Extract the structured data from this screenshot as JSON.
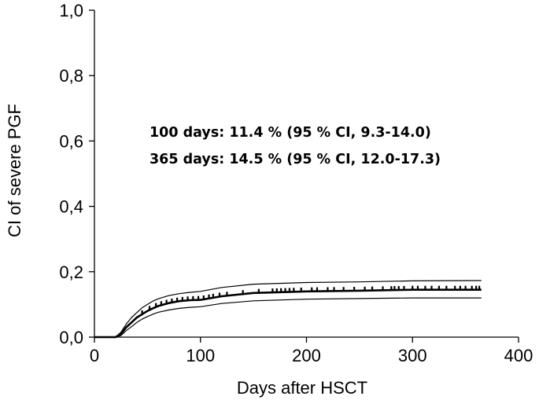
{
  "chart_data": {
    "type": "line",
    "title": "",
    "xlabel": "Days after HSCT",
    "ylabel": "CI of severe PGF",
    "xlim": [
      0,
      400
    ],
    "ylim": [
      0,
      1
    ],
    "x_ticks": [
      0,
      100,
      200,
      300,
      400
    ],
    "x_tick_labels": [
      "0",
      "100",
      "200",
      "300",
      "400"
    ],
    "y_ticks": [
      0,
      0.2,
      0.4,
      0.6,
      0.8,
      1.0
    ],
    "y_tick_labels": [
      "0,0",
      "0,2",
      "0,4",
      "0,6",
      "0,8",
      "1,0"
    ],
    "grid": false,
    "legend": "none",
    "annotations": [
      "100 days: 11.4 % (95 % CI, 9.3-14.0)",
      "365 days: 14.5 % (95 % CI, 12.0-17.3)"
    ],
    "series": [
      {
        "role": "estimate",
        "x": [
          0,
          20,
          25,
          30,
          35,
          40,
          45,
          50,
          55,
          60,
          70,
          80,
          90,
          100,
          120,
          150,
          200,
          250,
          300,
          365
        ],
        "y": [
          0,
          0.0,
          0.01,
          0.03,
          0.045,
          0.06,
          0.07,
          0.08,
          0.088,
          0.095,
          0.104,
          0.11,
          0.113,
          0.114,
          0.125,
          0.135,
          0.14,
          0.142,
          0.145,
          0.145
        ]
      },
      {
        "role": "upper-ci",
        "x": [
          0,
          20,
          25,
          30,
          35,
          40,
          45,
          50,
          55,
          60,
          70,
          80,
          90,
          100,
          120,
          150,
          200,
          250,
          300,
          365
        ],
        "y": [
          0,
          0.0,
          0.015,
          0.04,
          0.06,
          0.075,
          0.09,
          0.1,
          0.11,
          0.117,
          0.127,
          0.133,
          0.137,
          0.14,
          0.152,
          0.162,
          0.167,
          0.169,
          0.172,
          0.173
        ]
      },
      {
        "role": "lower-ci",
        "x": [
          0,
          20,
          25,
          30,
          35,
          40,
          45,
          50,
          55,
          60,
          70,
          80,
          90,
          100,
          120,
          150,
          200,
          250,
          300,
          365
        ],
        "y": [
          0,
          0.0,
          0.005,
          0.02,
          0.032,
          0.045,
          0.055,
          0.063,
          0.07,
          0.076,
          0.083,
          0.088,
          0.091,
          0.093,
          0.103,
          0.111,
          0.116,
          0.118,
          0.12,
          0.12
        ]
      }
    ],
    "censored_x": [
      45,
      52,
      58,
      63,
      68,
      73,
      78,
      83,
      88,
      93,
      98,
      103,
      108,
      112,
      118,
      125,
      140,
      155,
      168,
      172,
      176,
      180,
      184,
      188,
      195,
      205,
      210,
      220,
      226,
      235,
      245,
      255,
      262,
      272,
      280,
      283,
      287,
      292,
      300,
      305,
      312,
      318,
      325,
      332,
      340,
      345,
      350,
      356,
      360,
      363
    ]
  }
}
